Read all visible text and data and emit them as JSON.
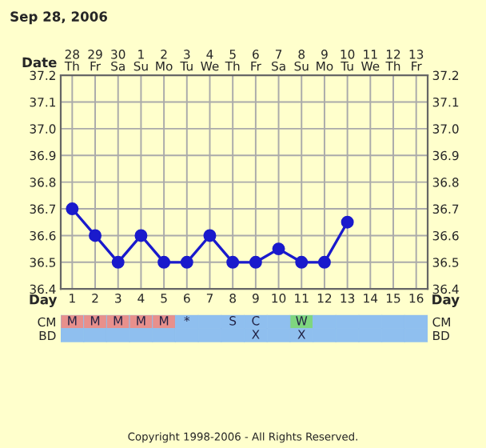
{
  "chart_data": [
    {
      "type": "line",
      "title": "Sep 28, 2006",
      "xlabel": "Day",
      "xlim": [
        0.5,
        16.5
      ],
      "xticks": [
        1,
        2,
        3,
        4,
        5,
        6,
        7,
        8,
        9,
        10,
        11,
        12,
        13,
        14,
        15,
        16
      ],
      "ylim": [
        36.4,
        37.2
      ],
      "yticks": [
        36.4,
        36.5,
        36.6,
        36.7,
        36.8,
        36.9,
        {
          "value": 37.0,
          "label": "37.0"
        },
        37.1,
        37.2
      ],
      "y2lim": [
        36.4,
        37.2
      ],
      "y2ticks": [
        36.4,
        36.5,
        36.6,
        36.7,
        36.8,
        36.9,
        {
          "value": 37.0,
          "label": "37.0"
        },
        37.1,
        37.2
      ],
      "grid": true,
      "marker": "circle",
      "line_style": "solid",
      "series": [
        {
          "color": "#1a1acc",
          "x": [
            1,
            2,
            3,
            4,
            5,
            6,
            7,
            8,
            9,
            10,
            11,
            12,
            13
          ],
          "values": [
            36.7,
            36.6,
            36.5,
            36.6,
            36.5,
            36.5,
            36.6,
            36.5,
            36.5,
            36.55,
            36.5,
            36.5,
            36.65
          ]
        }
      ],
      "annotations": [
        "Date",
        "Copyright 1998-2006 - All Rights Reserved.",
        "28\nTh",
        "29\nFr",
        "30\nSa",
        "1\nSu",
        "2\nMo",
        "3\nTu",
        "4\nWe",
        "5\nTh",
        "6\nFr",
        "7\nSa",
        "8\nSu",
        "9\nMo",
        "10\nTu",
        "11\nWe",
        "12\nTh",
        "13\nFr"
      ]
    },
    {
      "type": "heatmap",
      "categories": [
        null,
        null,
        null,
        null,
        null,
        null,
        null,
        null,
        null,
        null,
        null,
        null,
        null,
        null,
        null,
        null
      ],
      "y_categories": [
        "CM",
        "BD"
      ],
      "y2_categories": [
        "CM",
        "BD"
      ],
      "cells": [
        [
          null,
          null,
          null,
          null,
          null,
          null,
          null,
          null,
          null,
          null,
          null,
          null,
          null,
          null,
          null,
          null
        ],
        [
          null,
          null,
          null,
          null,
          null,
          null,
          null,
          null,
          null,
          null,
          null,
          null,
          null,
          null,
          null,
          null
        ]
      ],
      "cell_labels": [
        [
          "M",
          "M",
          "M",
          "M",
          "M",
          "*",
          null,
          "S",
          "C",
          null,
          "W",
          null,
          null,
          null,
          null,
          null
        ],
        [
          null,
          null,
          null,
          null,
          null,
          null,
          null,
          null,
          "X",
          null,
          "X",
          null,
          null,
          null,
          null,
          null
        ]
      ],
      "colors": [
        [
          "#e8908c",
          "#e8908c",
          "#e8908c",
          "#e8908c",
          "#e8908c",
          "#8fbfef",
          "#8fbfef",
          "#8fbfef",
          "#8fbfef",
          "#8fbfef",
          "#7fd67f",
          "#8fbfef",
          "#8fbfef",
          "#8fbfef",
          "#8fbfef",
          "#8fbfef"
        ],
        [
          "#8fbfef",
          "#8fbfef",
          "#8fbfef",
          "#8fbfef",
          "#8fbfef",
          "#8fbfef",
          "#8fbfef",
          "#8fbfef",
          "#8fbfef",
          "#8fbfef",
          "#8fbfef",
          "#8fbfef",
          "#8fbfef",
          "#8fbfef",
          "#8fbfef",
          "#8fbfef"
        ]
      ]
    }
  ]
}
